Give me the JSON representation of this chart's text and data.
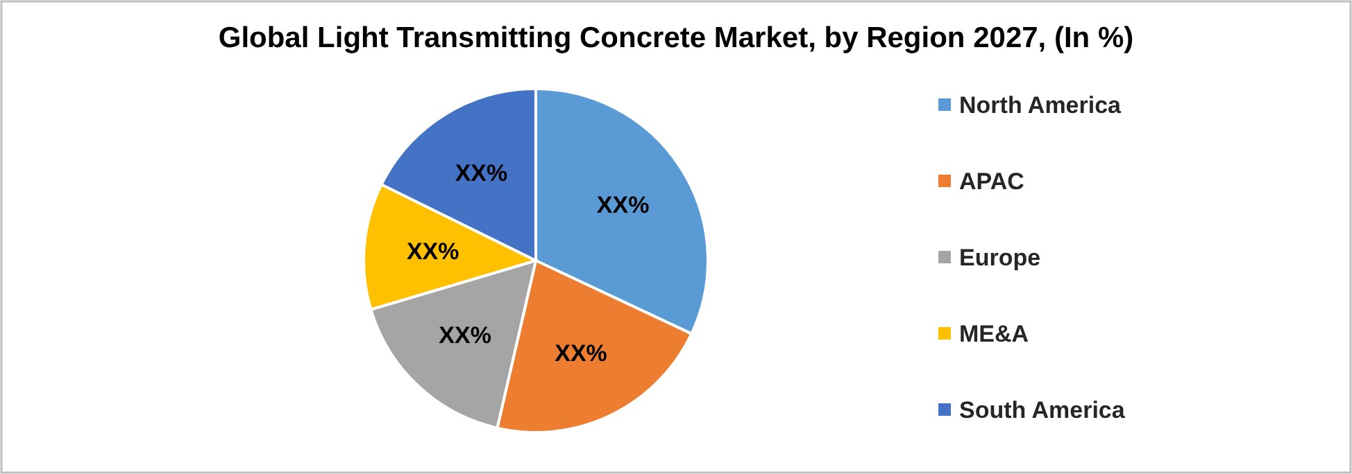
{
  "chart_data": {
    "type": "pie",
    "title": "Global Light Transmitting Concrete Market, by Region 2027, (In %)",
    "categories": [
      "North America",
      "APAC",
      "Europe",
      "ME&A",
      "South America"
    ],
    "values": [
      32,
      21.6,
      16.8,
      11.9,
      17.7
    ],
    "colors": [
      "#5b9bd5",
      "#ed7d31",
      "#a5a5a5",
      "#ffc000",
      "#4472c4"
    ],
    "value_labels": [
      "XX%",
      "XX%",
      "XX%",
      "XX%",
      "XX%"
    ],
    "legend": "right"
  }
}
